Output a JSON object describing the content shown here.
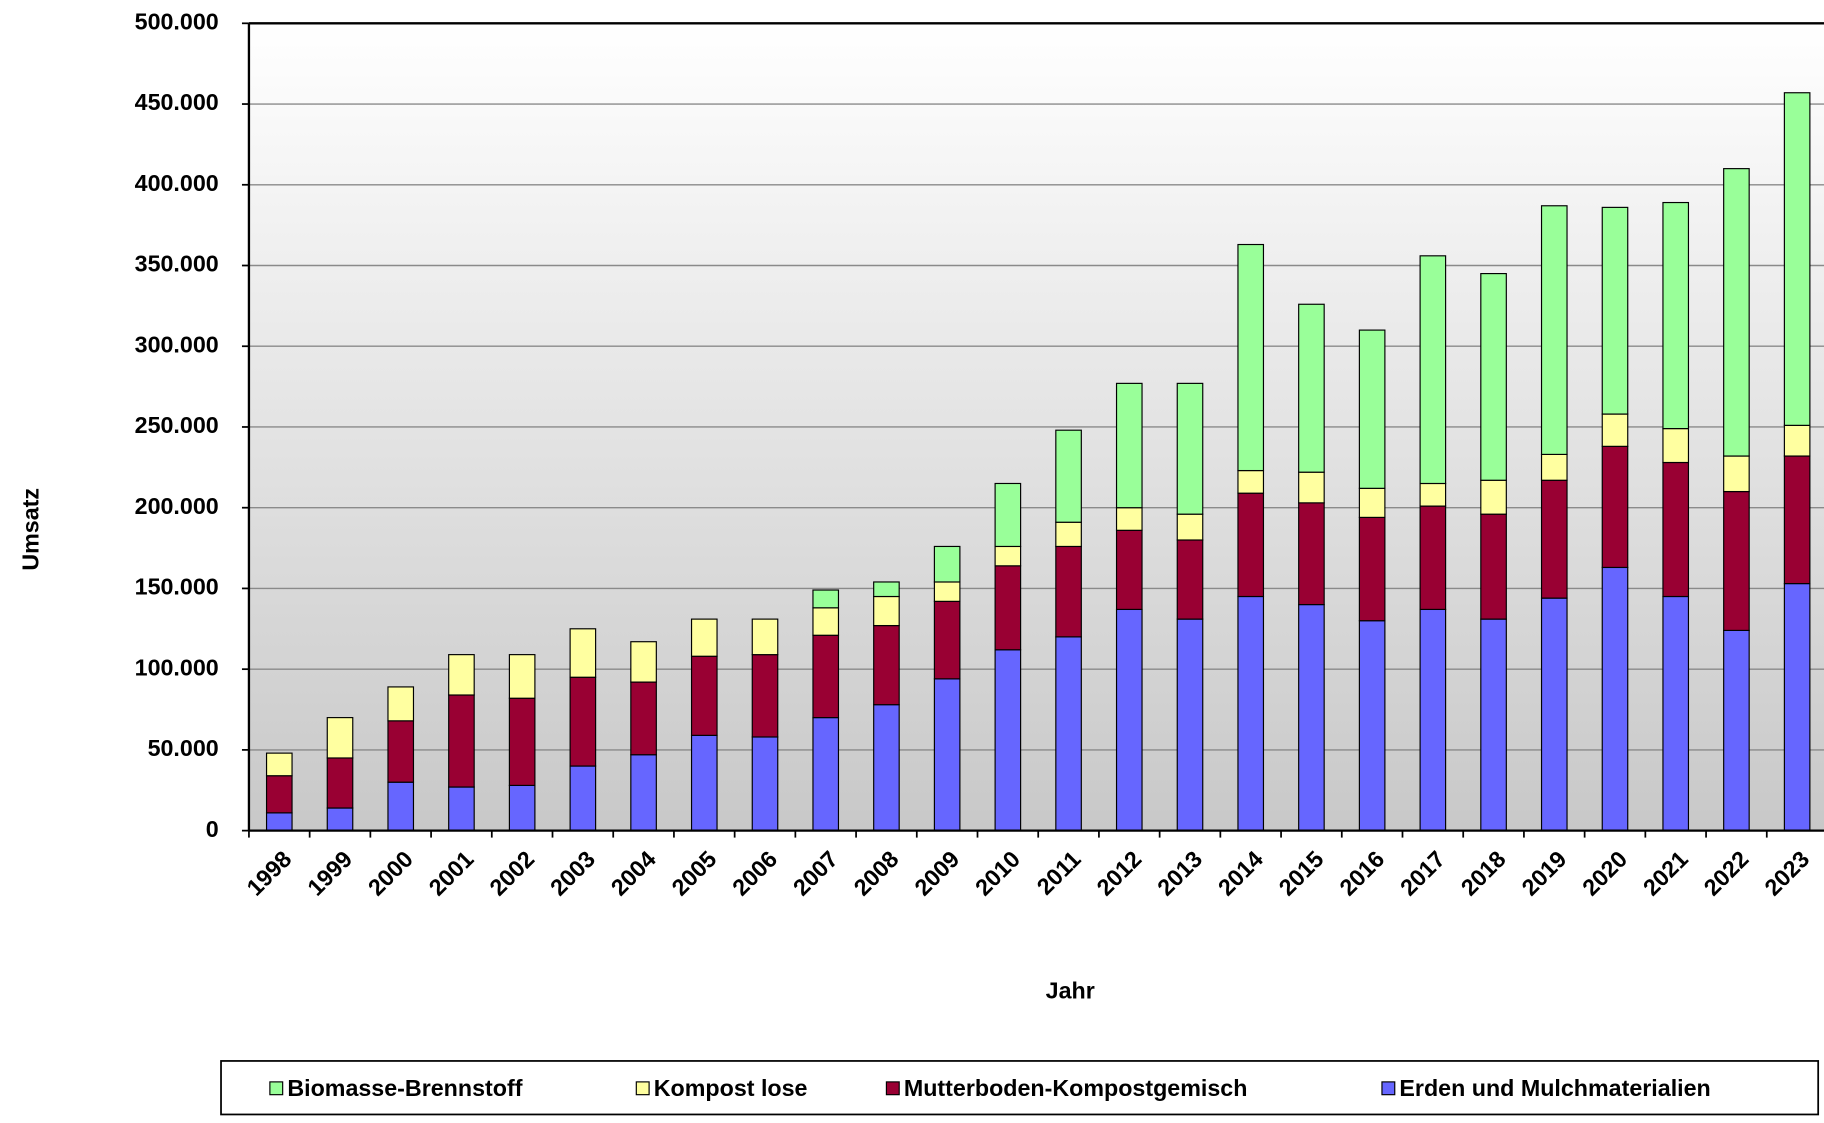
{
  "chart_data": {
    "type": "stacked_bar",
    "x_label": "Jahr",
    "y_label": "Umsatz",
    "categories": [
      "1998",
      "1999",
      "2000",
      "2001",
      "2002",
      "2003",
      "2004",
      "2005",
      "2006",
      "2007",
      "2008",
      "2009",
      "2010",
      "2011",
      "2012",
      "2013",
      "2014",
      "2015",
      "2016",
      "2017",
      "2018",
      "2019",
      "2020",
      "2021",
      "2022",
      "2023"
    ],
    "series": [
      {
        "name": "Erden und Mulchmaterialien",
        "color": "#6666ff",
        "values": [
          11000,
          14000,
          30000,
          27000,
          28000,
          40000,
          47000,
          59000,
          58000,
          70000,
          78000,
          94000,
          112000,
          120000,
          137000,
          131000,
          145000,
          140000,
          130000,
          137000,
          131000,
          144000,
          163000,
          145000,
          124000,
          153000
        ]
      },
      {
        "name": "Mutterboden-Kompostgemisch",
        "color": "#990033",
        "values": [
          23000,
          31000,
          38000,
          57000,
          54000,
          55000,
          45000,
          49000,
          51000,
          51000,
          49000,
          48000,
          52000,
          56000,
          49000,
          49000,
          64000,
          63000,
          64000,
          64000,
          65000,
          73000,
          75000,
          83000,
          86000,
          79000
        ]
      },
      {
        "name": "Kompost lose",
        "color": "#ffffa0",
        "values": [
          14000,
          25000,
          21000,
          25000,
          27000,
          30000,
          25000,
          23000,
          22000,
          17000,
          18000,
          12000,
          12000,
          15000,
          14000,
          16000,
          14000,
          19000,
          18000,
          14000,
          21000,
          16000,
          20000,
          21000,
          22000,
          19000
        ]
      },
      {
        "name": "Biomasse-Brennstoff",
        "color": "#99ff99",
        "values": [
          0,
          0,
          0,
          0,
          0,
          0,
          0,
          0,
          0,
          11000,
          9000,
          22000,
          39000,
          57000,
          77000,
          81000,
          140000,
          104000,
          98000,
          141000,
          128000,
          154000,
          128000,
          140000,
          178000,
          206000
        ]
      }
    ],
    "ylim": [
      0,
      500000
    ],
    "yticks": [
      0,
      {
        "value": 50000,
        "label": "50.000"
      },
      {
        "value": 100000,
        "label": "100.000"
      },
      {
        "value": 150000,
        "label": "150.000"
      },
      {
        "value": 200000,
        "label": "200.000"
      },
      {
        "value": 250000,
        "label": "250.000"
      },
      {
        "value": 300000,
        "label": "300.000"
      },
      {
        "value": 350000,
        "label": "350.000"
      },
      {
        "value": 400000,
        "label": "400.000"
      },
      {
        "value": 450000,
        "label": "450.000"
      },
      {
        "value": 500000,
        "label": "500.000"
      }
    ],
    "grid": true
  }
}
